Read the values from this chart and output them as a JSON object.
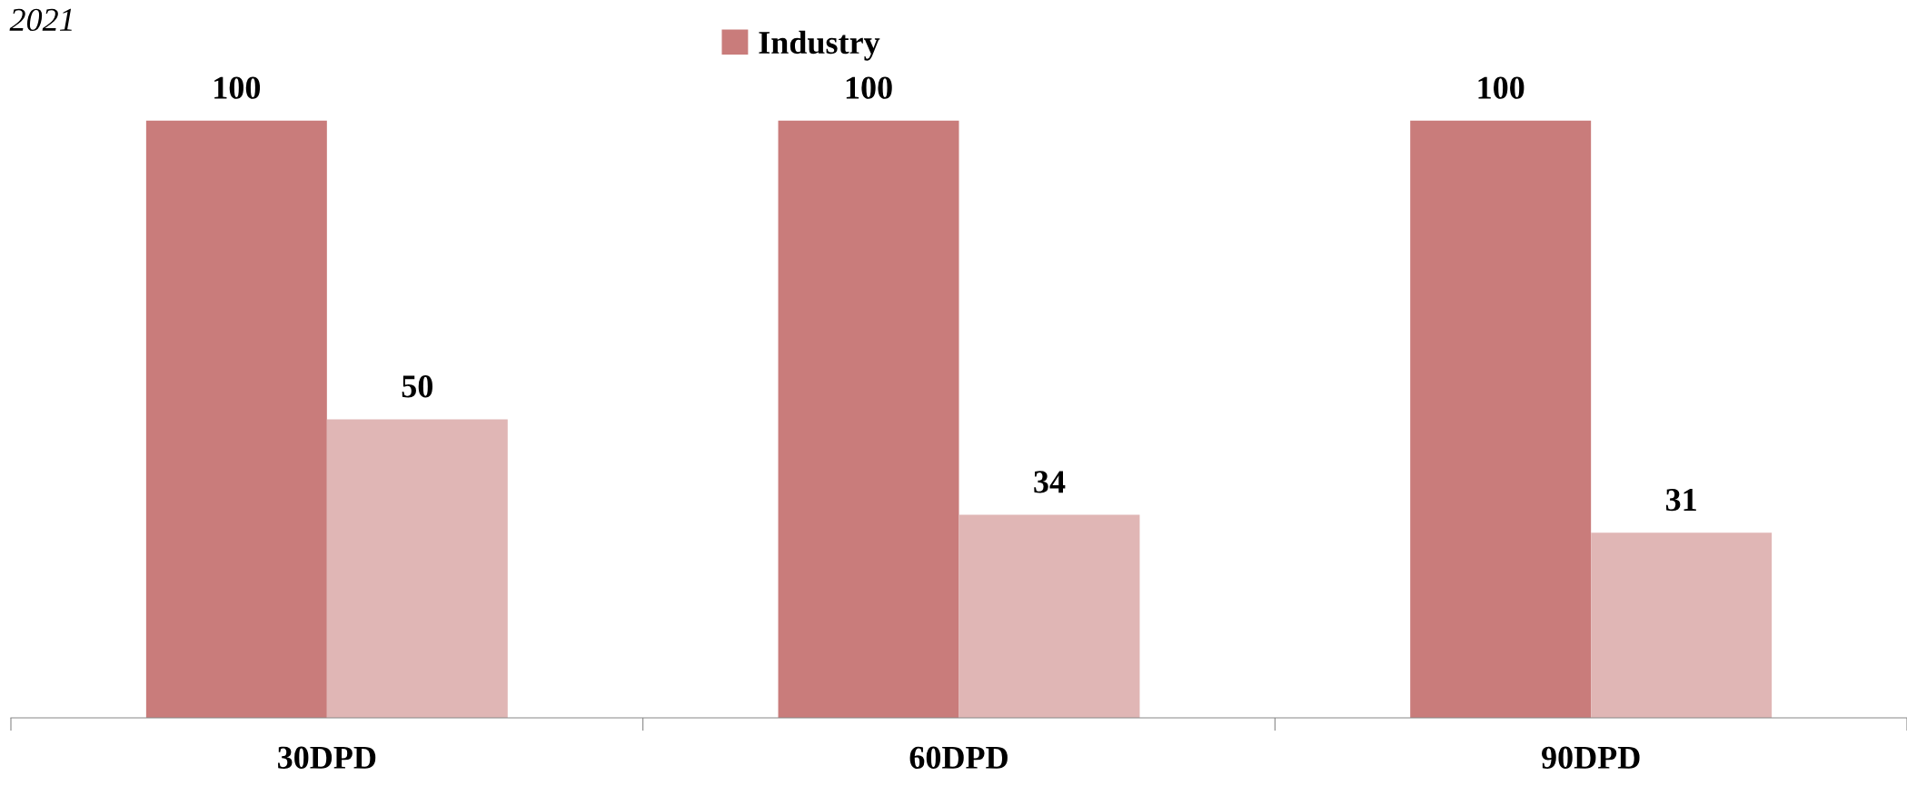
{
  "chart_data": {
    "type": "bar",
    "categories": [
      "30DPD",
      "60DPD",
      "90DPD"
    ],
    "series": [
      {
        "name": "Industry",
        "color": "#c97c7b",
        "values": [
          100,
          100,
          100
        ]
      },
      {
        "color": "#e0b6b5",
        "values": [
          50,
          34,
          31
        ]
      }
    ],
    "data_labels": true,
    "tick_labels": "x",
    "grid": false,
    "legend": "top",
    "annotations": [
      "2021"
    ]
  }
}
